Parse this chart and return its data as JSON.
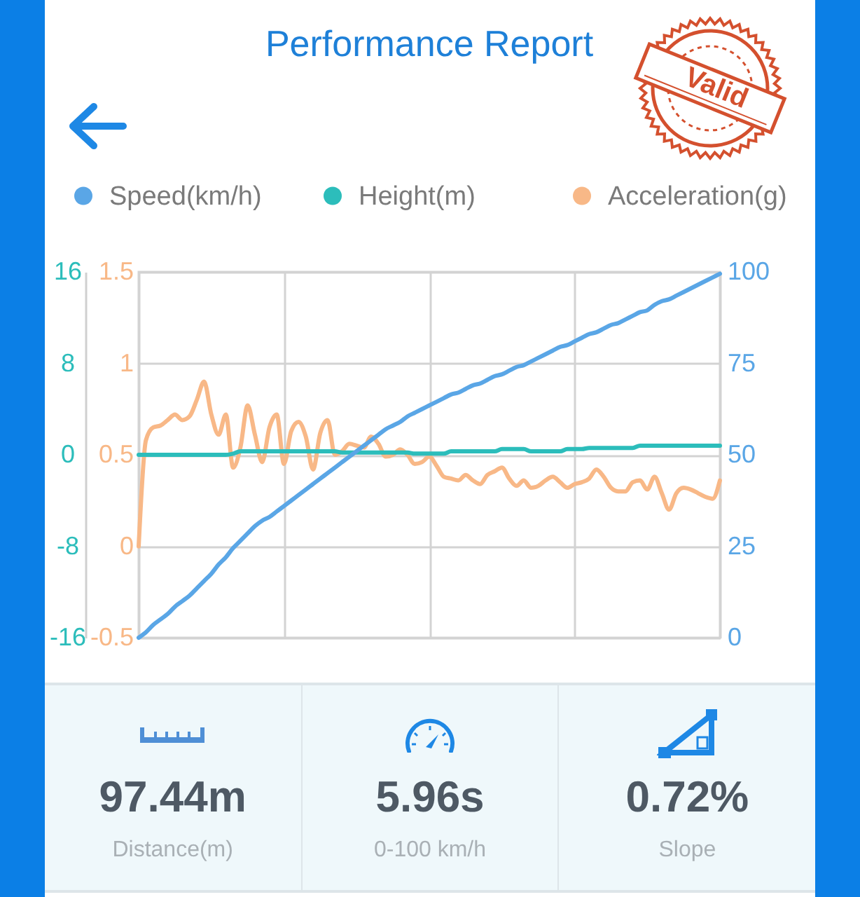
{
  "chart_data": [
    {
      "type": "line",
      "title": "Performance Report",
      "annotations": [
        "Valid"
      ],
      "categories": [
        null,
        null,
        null,
        null,
        null,
        null,
        null,
        null,
        null,
        null,
        null,
        null,
        null,
        null,
        null,
        null,
        null,
        null,
        null,
        null,
        null,
        null,
        null,
        null,
        null,
        null,
        null,
        null,
        null,
        null,
        null,
        null,
        null,
        null,
        null,
        null,
        null,
        null,
        null,
        null,
        null,
        null,
        null,
        null,
        null,
        null,
        null,
        null,
        null,
        null,
        null,
        null,
        null,
        null,
        null,
        null,
        null,
        null,
        null,
        null,
        null,
        null,
        null,
        null,
        null,
        null,
        null,
        null,
        null,
        null,
        null,
        null,
        null,
        null,
        null,
        null,
        null,
        null,
        null,
        null,
        null
      ],
      "series": [
        {
          "name": "Speed(km/h)",
          "color": "#5aa6e6",
          "axis": "y2",
          "values": [
            0,
            1.5,
            3.5,
            5,
            6.5,
            8.5,
            10,
            11.5,
            13.5,
            15.5,
            17.5,
            20,
            22,
            24.5,
            26.5,
            28.5,
            30.5,
            32,
            33,
            34.5,
            36,
            37.5,
            39,
            40.5,
            42,
            43.5,
            45,
            46.5,
            48,
            49.5,
            51,
            52.5,
            54,
            55.5,
            57,
            58,
            59,
            60.5,
            61.5,
            62.5,
            63.5,
            64.5,
            65.5,
            66.5,
            67,
            68,
            69,
            69.5,
            70.5,
            71.5,
            72,
            73,
            74,
            74.5,
            75.5,
            76.5,
            77.5,
            78.5,
            79.5,
            80,
            81,
            82,
            83,
            83.5,
            84.5,
            85.5,
            86,
            87,
            88,
            89,
            89.5,
            91,
            92,
            92.5,
            93.5,
            94.5,
            95.5,
            96.5,
            97.5,
            98.5,
            99.5
          ]
        },
        {
          "name": "Height(m)",
          "color": "#2cbdbb",
          "axis": "y",
          "values": [
            0,
            0,
            0,
            0,
            0,
            0,
            0,
            0,
            0,
            0,
            0,
            0,
            0,
            0.1,
            0.3,
            0.3,
            0.3,
            0.3,
            0.3,
            0.3,
            0.3,
            0.3,
            0.3,
            0.3,
            0.3,
            0.3,
            0.3,
            0.3,
            0.2,
            0.2,
            0.2,
            0.2,
            0.2,
            0.2,
            0.2,
            0.2,
            0.2,
            0.2,
            0.1,
            0.1,
            0.1,
            0.1,
            0.1,
            0.3,
            0.3,
            0.3,
            0.3,
            0.3,
            0.3,
            0.3,
            0.5,
            0.5,
            0.5,
            0.5,
            0.3,
            0.3,
            0.3,
            0.3,
            0.3,
            0.5,
            0.5,
            0.5,
            0.6,
            0.6,
            0.6,
            0.6,
            0.6,
            0.6,
            0.6,
            0.8,
            0.8,
            0.8,
            0.8,
            0.8,
            0.8,
            0.8,
            0.8,
            0.8,
            0.8,
            0.8,
            0.8
          ]
        },
        {
          "name": "Acceleration(g)",
          "color": "#f8b887",
          "axis": "y3",
          "values": [
            0,
            0.58,
            0.65,
            0.66,
            0.69,
            0.72,
            0.69,
            0.71,
            0.8,
            0.9,
            0.72,
            0.61,
            0.72,
            0.43,
            0.54,
            0.77,
            0.61,
            0.46,
            0.65,
            0.72,
            0.45,
            0.63,
            0.68,
            0.6,
            0.42,
            0.62,
            0.69,
            0.5,
            0.52,
            0.56,
            0.55,
            0.54,
            0.6,
            0.56,
            0.49,
            0.5,
            0.53,
            0.5,
            0.45,
            0.46,
            0.49,
            0.44,
            0.38,
            0.37,
            0.36,
            0.39,
            0.36,
            0.34,
            0.39,
            0.41,
            0.43,
            0.37,
            0.33,
            0.36,
            0.32,
            0.33,
            0.36,
            0.38,
            0.35,
            0.32,
            0.34,
            0.35,
            0.37,
            0.42,
            0.38,
            0.32,
            0.3,
            0.3,
            0.35,
            0.36,
            0.31,
            0.38,
            0.29,
            0.2,
            0.29,
            0.32,
            0.31,
            0.29,
            0.27,
            0.26,
            0.36
          ]
        }
      ],
      "ylim": [
        -16,
        16
      ],
      "yticks": [
        -16,
        -8,
        0,
        8,
        16
      ],
      "y2lim": [
        0,
        100
      ],
      "y2ticks": [
        0,
        25,
        50,
        75,
        100
      ],
      "y3lim": [
        -0.5,
        1.5
      ],
      "y3ticks": [
        -0.5,
        0,
        0.5,
        1,
        1.5
      ],
      "grid": true,
      "legend": "top"
    },
    {
      "type": "other",
      "categories": [
        "Distance(m)",
        "0-100 km/h",
        "Slope"
      ],
      "value_labels": [
        "97.44m",
        "5.96s",
        "0.72%"
      ]
    }
  ]
}
